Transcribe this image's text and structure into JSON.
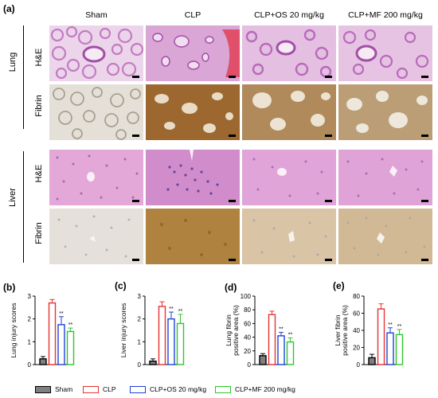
{
  "panel_a": {
    "letter": "(a)",
    "columns": [
      "Sham",
      "CLP",
      "CLP+OS 20 mg/kg",
      "CLP+MF 200 mg/kg"
    ],
    "organs": [
      {
        "label": "Lung",
        "rows": [
          "H&E",
          "Fibrin"
        ]
      },
      {
        "label": "Liver",
        "rows": [
          "H&E",
          "Fibrin"
        ]
      }
    ]
  },
  "legend": [
    {
      "label": "Sham",
      "color": "#7f7f7f",
      "filled": true
    },
    {
      "label": "CLP",
      "color": "#e8312f",
      "filled": false
    },
    {
      "label": "CLP+OS 20 mg/kg",
      "color": "#1f43d8",
      "filled": false
    },
    {
      "label": "CLP+MF 200 mg/kg",
      "color": "#2cc82c",
      "filled": false
    }
  ],
  "colors": {
    "he_bg": "#e9c8e6",
    "he_tissue": "#b55cb8",
    "fibrin_light": "#d9d2c4",
    "fibrin_dark": "#9a6a2e",
    "sham_bar": "#7f7f7f",
    "clp_bar": "#e8312f",
    "os_bar": "#1f43d8",
    "mf_bar": "#2cc82c"
  },
  "chart_data": [
    {
      "letter": "(b)",
      "type": "bar",
      "ylabel": "Lung injury scores",
      "ylim": [
        0,
        3
      ],
      "yticks": [
        "0",
        "1",
        "2",
        "3"
      ],
      "categories": [
        "Sham",
        "CLP",
        "CLP+OS 20 mg/kg",
        "CLP+MF 200 mg/kg"
      ],
      "values": [
        0.25,
        2.7,
        1.75,
        1.45
      ],
      "errors": [
        0.1,
        0.15,
        0.35,
        0.15
      ],
      "annotations": [
        "",
        "",
        "**",
        "**"
      ]
    },
    {
      "letter": "(c)",
      "type": "bar",
      "ylabel": "Liver injury scores",
      "ylim": [
        0,
        3
      ],
      "yticks": [
        "0",
        "1",
        "2",
        "3"
      ],
      "categories": [
        "Sham",
        "CLP",
        "CLP+OS 20 mg/kg",
        "CLP+MF 200 mg/kg"
      ],
      "values": [
        0.15,
        2.55,
        2.0,
        1.8
      ],
      "errors": [
        0.1,
        0.2,
        0.3,
        0.4
      ],
      "annotations": [
        "",
        "",
        "**",
        "**"
      ]
    },
    {
      "letter": "(d)",
      "type": "bar",
      "ylabel": [
        "Lung fibrin",
        "positive area (%)"
      ],
      "ylim": [
        0,
        100
      ],
      "yticks": [
        "0",
        "20",
        "40",
        "60",
        "80",
        "100"
      ],
      "categories": [
        "Sham",
        "CLP",
        "CLP+OS 20 mg/kg",
        "CLP+MF 200 mg/kg"
      ],
      "values": [
        13,
        73,
        42,
        33
      ],
      "errors": [
        3,
        5,
        5,
        6
      ],
      "annotations": [
        "",
        "",
        "**",
        "**"
      ]
    },
    {
      "letter": "(e)",
      "type": "bar",
      "ylabel": [
        "Liver fibrin",
        "positive area (%)"
      ],
      "ylim": [
        0,
        80
      ],
      "yticks": [
        "0",
        "20",
        "40",
        "60",
        "80"
      ],
      "categories": [
        "Sham",
        "CLP",
        "CLP+OS 20 mg/kg",
        "CLP+MF 200 mg/kg"
      ],
      "values": [
        8,
        65,
        37,
        35
      ],
      "errors": [
        4,
        6,
        6,
        6
      ],
      "annotations": [
        "",
        "",
        "**",
        "**"
      ]
    }
  ]
}
